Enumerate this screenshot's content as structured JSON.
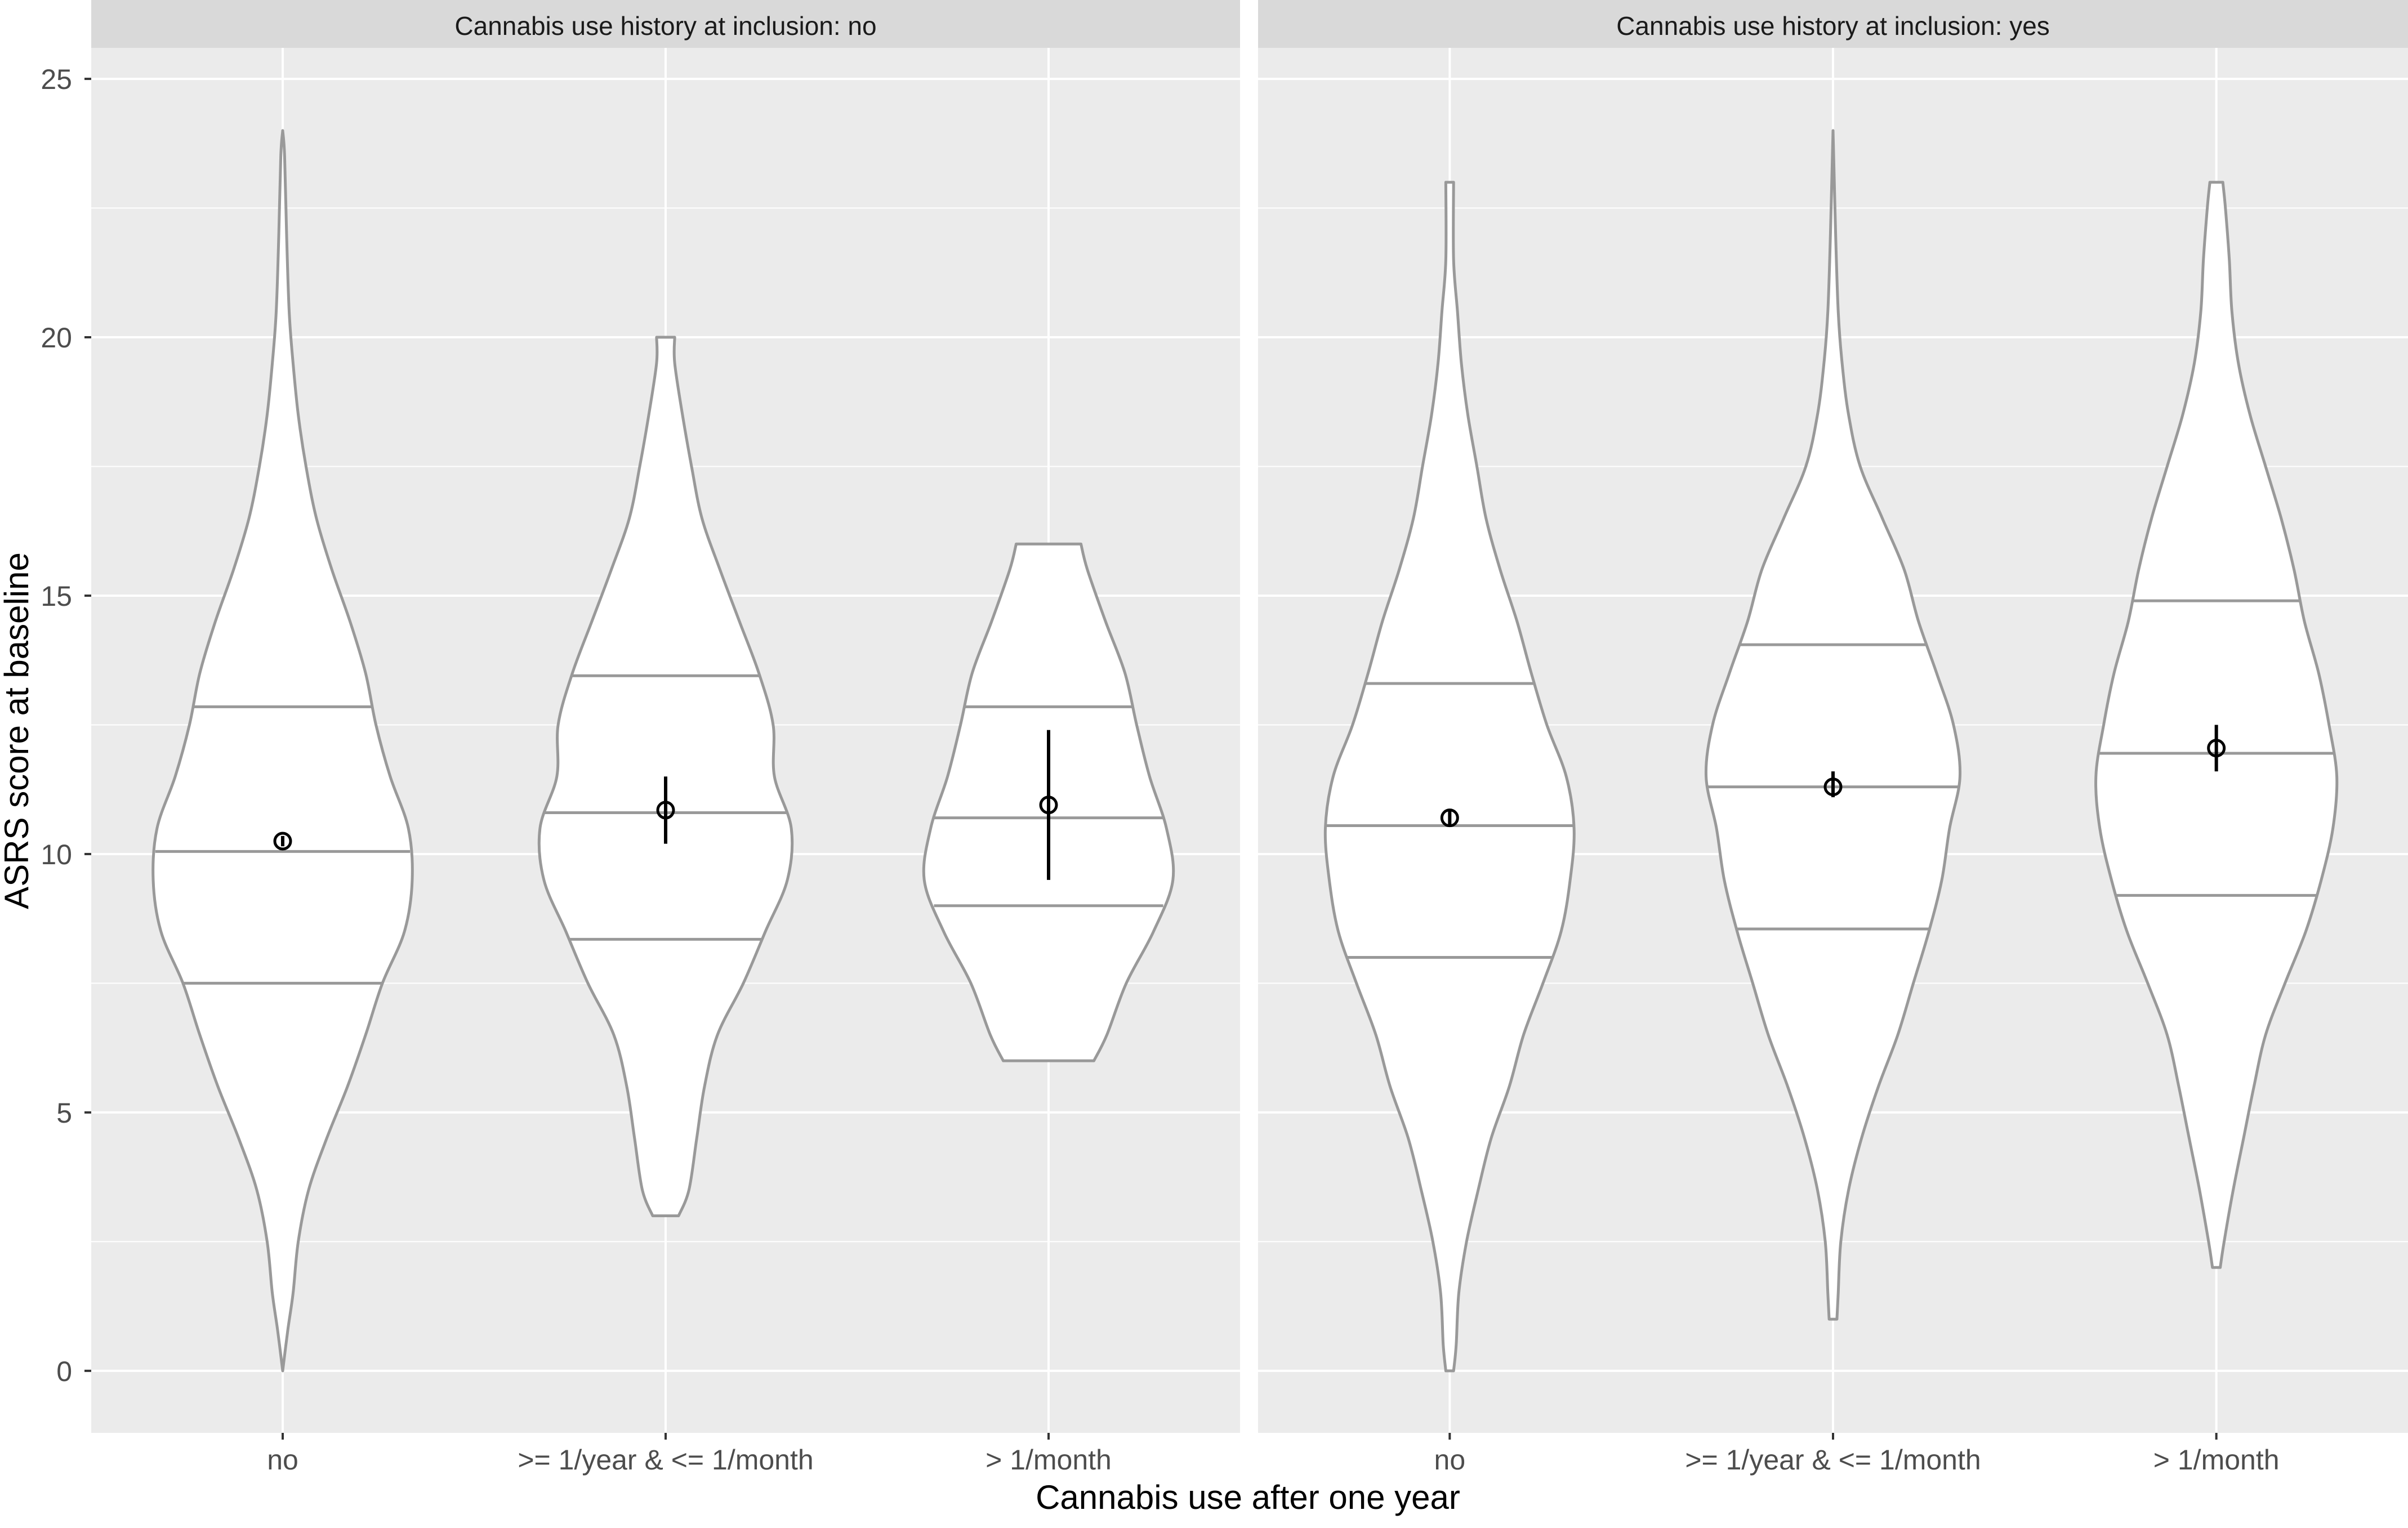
{
  "chart_data": {
    "type": "violin",
    "xlabel": "Cannabis use after one year",
    "ylabel": "ASRS score at baseline",
    "ylim": [
      -1.2,
      25.6
    ],
    "yticks": [
      0,
      5,
      10,
      15,
      20,
      25
    ],
    "categories": [
      "no",
      ">= 1/year & <= 1/month",
      "> 1/month"
    ],
    "grid": true,
    "colors": {
      "panel_bg": "#ebebeb",
      "strip_bg": "#d9d9d9",
      "grid": "#ffffff",
      "violin_fill": "#ffffff",
      "violin_stroke": "#999999",
      "point": "#000000",
      "axis_text": "#4d4d4d",
      "title_text": "#000000",
      "strip_text": "#1a1a1a"
    },
    "panels": [
      {
        "strip": "Cannabis use history at inclusion: no",
        "violins": [
          {
            "category": "no",
            "quantiles": [
              7.5,
              10.05,
              12.85
            ],
            "mean": 10.25,
            "ci": [
              10.15,
              10.35
            ],
            "profile": [
              [
                0,
                0.0
              ],
              [
                0.8,
                0.04
              ],
              [
                1.5,
                0.08
              ],
              [
                2.5,
                0.12
              ],
              [
                3.5,
                0.2
              ],
              [
                4.5,
                0.34
              ],
              [
                5.5,
                0.5
              ],
              [
                6.5,
                0.64
              ],
              [
                7.5,
                0.77
              ],
              [
                8.5,
                0.94
              ],
              [
                9.5,
                1.0
              ],
              [
                10.5,
                0.97
              ],
              [
                11.5,
                0.83
              ],
              [
                12.5,
                0.72
              ],
              [
                13.5,
                0.64
              ],
              [
                14.5,
                0.52
              ],
              [
                15.5,
                0.38
              ],
              [
                16.5,
                0.26
              ],
              [
                17.5,
                0.18
              ],
              [
                18.5,
                0.12
              ],
              [
                19.5,
                0.08
              ],
              [
                20.5,
                0.05
              ],
              [
                22,
                0.03
              ],
              [
                23.5,
                0.015
              ],
              [
                24,
                0.0
              ]
            ]
          },
          {
            "category": ">= 1/year & <= 1/month",
            "quantiles": [
              8.35,
              10.8,
              13.45
            ],
            "mean": 10.85,
            "ci": [
              10.2,
              11.5
            ],
            "profile": [
              [
                3,
                0.1
              ],
              [
                3.5,
                0.18
              ],
              [
                4.5,
                0.24
              ],
              [
                5.5,
                0.3
              ],
              [
                6.5,
                0.4
              ],
              [
                7.5,
                0.6
              ],
              [
                8.5,
                0.77
              ],
              [
                9.5,
                0.94
              ],
              [
                10.5,
                0.97
              ],
              [
                11.5,
                0.84
              ],
              [
                12.5,
                0.83
              ],
              [
                13.5,
                0.72
              ],
              [
                14.5,
                0.57
              ],
              [
                15.5,
                0.42
              ],
              [
                16.5,
                0.28
              ],
              [
                17.5,
                0.2
              ],
              [
                18.5,
                0.13
              ],
              [
                19.5,
                0.07
              ],
              [
                20,
                0.07
              ]
            ]
          },
          {
            "category": "> 1/month",
            "quantiles": [
              9.0,
              10.7,
              12.85
            ],
            "mean": 10.95,
            "ci": [
              9.5,
              12.4
            ],
            "profile": [
              [
                6,
                0.35
              ],
              [
                6.5,
                0.45
              ],
              [
                7.5,
                0.6
              ],
              [
                8.5,
                0.81
              ],
              [
                9.5,
                0.96
              ],
              [
                10.5,
                0.91
              ],
              [
                11.5,
                0.78
              ],
              [
                12.5,
                0.68
              ],
              [
                13.5,
                0.59
              ],
              [
                14.5,
                0.44
              ],
              [
                15.5,
                0.3
              ],
              [
                16,
                0.25
              ]
            ]
          }
        ]
      },
      {
        "strip": "Cannabis use history at inclusion: yes",
        "violins": [
          {
            "category": "no",
            "quantiles": [
              8.0,
              10.55,
              13.3
            ],
            "mean": 10.7,
            "ci": [
              10.55,
              10.85
            ],
            "profile": [
              [
                0,
                0.03
              ],
              [
                0.5,
                0.05
              ],
              [
                1.5,
                0.07
              ],
              [
                2.5,
                0.13
              ],
              [
                3.5,
                0.22
              ],
              [
                4.5,
                0.32
              ],
              [
                5.5,
                0.46
              ],
              [
                6.5,
                0.57
              ],
              [
                7.5,
                0.72
              ],
              [
                8.5,
                0.86
              ],
              [
                9.5,
                0.93
              ],
              [
                10.5,
                0.96
              ],
              [
                11.5,
                0.9
              ],
              [
                12.5,
                0.75
              ],
              [
                13.5,
                0.63
              ],
              [
                14.5,
                0.52
              ],
              [
                15.5,
                0.39
              ],
              [
                16.5,
                0.28
              ],
              [
                17.5,
                0.21
              ],
              [
                18.5,
                0.14
              ],
              [
                19.5,
                0.09
              ],
              [
                20.5,
                0.06
              ],
              [
                21.5,
                0.03
              ],
              [
                23,
                0.03
              ]
            ]
          },
          {
            "category": ">= 1/year & <= 1/month",
            "quantiles": [
              8.55,
              11.3,
              14.05
            ],
            "mean": 11.3,
            "ci": [
              11.1,
              11.6
            ],
            "profile": [
              [
                1,
                0.03
              ],
              [
                1.5,
                0.04
              ],
              [
                2.5,
                0.06
              ],
              [
                3.5,
                0.12
              ],
              [
                4.5,
                0.22
              ],
              [
                5.5,
                0.35
              ],
              [
                6.5,
                0.5
              ],
              [
                7.5,
                0.62
              ],
              [
                8.5,
                0.74
              ],
              [
                9.5,
                0.84
              ],
              [
                10.5,
                0.9
              ],
              [
                11.5,
                0.98
              ],
              [
                12.5,
                0.93
              ],
              [
                13.5,
                0.8
              ],
              [
                14.5,
                0.66
              ],
              [
                15.5,
                0.55
              ],
              [
                16.5,
                0.38
              ],
              [
                17.5,
                0.21
              ],
              [
                18.5,
                0.12
              ],
              [
                19.5,
                0.07
              ],
              [
                20.5,
                0.04
              ],
              [
                22,
                0.02
              ],
              [
                24,
                0.0
              ]
            ]
          },
          {
            "category": "> 1/month",
            "quantiles": [
              9.2,
              11.95,
              14.9
            ],
            "mean": 12.05,
            "ci": [
              11.6,
              12.5
            ],
            "profile": [
              [
                2,
                0.03
              ],
              [
                2.5,
                0.06
              ],
              [
                3.5,
                0.13
              ],
              [
                4.5,
                0.21
              ],
              [
                5.5,
                0.29
              ],
              [
                6.5,
                0.38
              ],
              [
                7.5,
                0.53
              ],
              [
                8.5,
                0.69
              ],
              [
                9.5,
                0.81
              ],
              [
                10.5,
                0.9
              ],
              [
                11.5,
                0.93
              ],
              [
                12.5,
                0.87
              ],
              [
                13.5,
                0.79
              ],
              [
                14.5,
                0.68
              ],
              [
                15.5,
                0.6
              ],
              [
                16.5,
                0.5
              ],
              [
                17.5,
                0.38
              ],
              [
                18.5,
                0.26
              ],
              [
                19.5,
                0.17
              ],
              [
                20.5,
                0.12
              ],
              [
                21.5,
                0.1
              ],
              [
                22.5,
                0.07
              ],
              [
                23,
                0.05
              ]
            ]
          }
        ]
      }
    ]
  }
}
